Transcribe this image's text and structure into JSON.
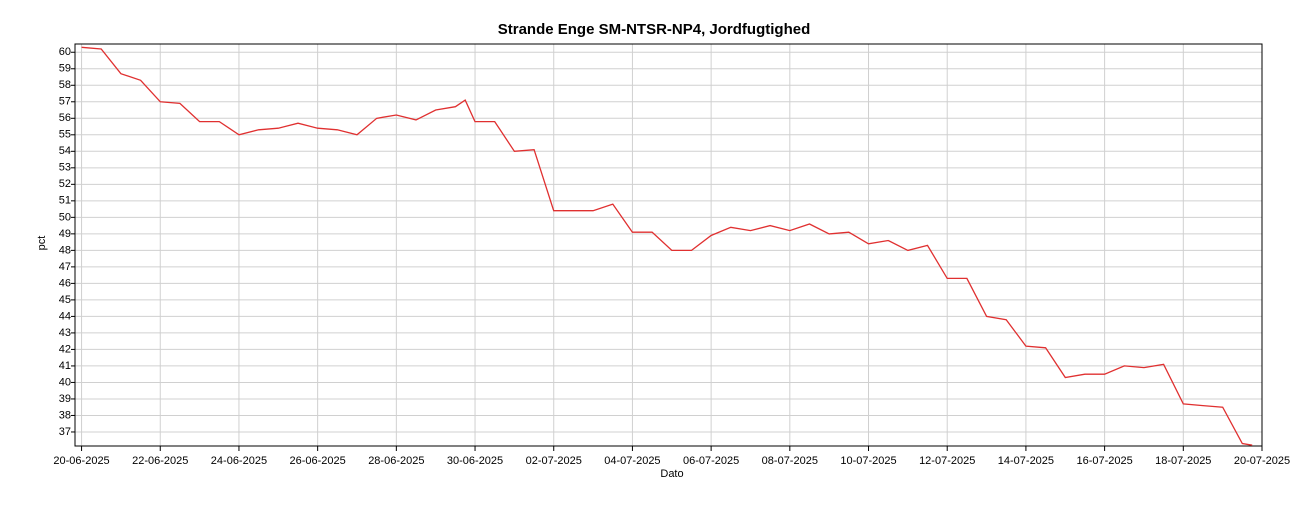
{
  "chart_data": {
    "type": "line",
    "title": "Strande Enge SM-NTSR-NP4, Jordfugtighed",
    "xlabel": "Dato",
    "ylabel": "pct",
    "xlim": [
      "2025-06-19T20:00",
      "2025-07-20"
    ],
    "xticks": [
      {
        "value": "2025-06-20",
        "label": "20-06-2025"
      },
      {
        "value": "2025-06-22",
        "label": "22-06-2025"
      },
      {
        "value": "2025-06-24",
        "label": "24-06-2025"
      },
      {
        "value": "2025-06-26",
        "label": "26-06-2025"
      },
      {
        "value": "2025-06-28",
        "label": "28-06-2025"
      },
      {
        "value": "2025-06-30",
        "label": "30-06-2025"
      },
      {
        "value": "2025-07-02",
        "label": "02-07-2025"
      },
      {
        "value": "2025-07-04",
        "label": "04-07-2025"
      },
      {
        "value": "2025-07-06",
        "label": "06-07-2025"
      },
      {
        "value": "2025-07-08",
        "label": "08-07-2025"
      },
      {
        "value": "2025-07-10",
        "label": "10-07-2025"
      },
      {
        "value": "2025-07-12",
        "label": "12-07-2025"
      },
      {
        "value": "2025-07-14",
        "label": "14-07-2025"
      },
      {
        "value": "2025-07-16",
        "label": "16-07-2025"
      },
      {
        "value": "2025-07-18",
        "label": "18-07-2025"
      },
      {
        "value": "2025-07-20",
        "label": "20-07-2025"
      }
    ],
    "ylim": [
      36.15,
      60.5
    ],
    "yticks": [
      37,
      38,
      39,
      40,
      41,
      42,
      43,
      44,
      45,
      46,
      47,
      48,
      49,
      50,
      51,
      52,
      53,
      54,
      55,
      56,
      57,
      58,
      59,
      60
    ],
    "grid": true,
    "series": [
      {
        "name": "Jordfugtighed",
        "color": "#e03030",
        "x": [
          "2025-06-20T00:00",
          "2025-06-20T12:00",
          "2025-06-21T00:00",
          "2025-06-21T12:00",
          "2025-06-22T00:00",
          "2025-06-22T12:00",
          "2025-06-23T00:00",
          "2025-06-23T12:00",
          "2025-06-24T00:00",
          "2025-06-24T12:00",
          "2025-06-25T00:00",
          "2025-06-25T12:00",
          "2025-06-26T00:00",
          "2025-06-26T12:00",
          "2025-06-27T00:00",
          "2025-06-27T12:00",
          "2025-06-28T00:00",
          "2025-06-28T12:00",
          "2025-06-29T00:00",
          "2025-06-29T12:00",
          "2025-06-29T18:00",
          "2025-06-30T00:00",
          "2025-06-30T12:00",
          "2025-07-01T00:00",
          "2025-07-01T12:00",
          "2025-07-02T00:00",
          "2025-07-02T12:00",
          "2025-07-03T00:00",
          "2025-07-03T12:00",
          "2025-07-04T00:00",
          "2025-07-04T12:00",
          "2025-07-05T00:00",
          "2025-07-05T12:00",
          "2025-07-06T00:00",
          "2025-07-06T12:00",
          "2025-07-07T00:00",
          "2025-07-07T12:00",
          "2025-07-08T00:00",
          "2025-07-08T12:00",
          "2025-07-09T00:00",
          "2025-07-09T12:00",
          "2025-07-10T00:00",
          "2025-07-10T12:00",
          "2025-07-11T00:00",
          "2025-07-11T12:00",
          "2025-07-12T00:00",
          "2025-07-12T12:00",
          "2025-07-13T00:00",
          "2025-07-13T12:00",
          "2025-07-14T00:00",
          "2025-07-14T12:00",
          "2025-07-15T00:00",
          "2025-07-15T12:00",
          "2025-07-16T00:00",
          "2025-07-16T12:00",
          "2025-07-17T00:00",
          "2025-07-17T12:00",
          "2025-07-18T00:00",
          "2025-07-18T12:00",
          "2025-07-19T00:00",
          "2025-07-19T12:00",
          "2025-07-19T18:00"
        ],
        "values": [
          60.3,
          60.2,
          58.7,
          58.3,
          57.0,
          56.9,
          55.8,
          55.8,
          55.0,
          55.3,
          55.4,
          55.7,
          55.4,
          55.3,
          55.0,
          56.0,
          56.2,
          55.9,
          56.5,
          56.7,
          57.1,
          55.8,
          55.8,
          54.0,
          54.1,
          50.4,
          50.4,
          50.4,
          50.8,
          49.1,
          49.1,
          48.0,
          48.0,
          48.9,
          49.4,
          49.2,
          49.5,
          49.2,
          49.6,
          49.0,
          49.1,
          48.4,
          48.6,
          48.0,
          48.3,
          46.3,
          46.3,
          44.0,
          43.8,
          42.2,
          42.1,
          40.3,
          40.5,
          40.5,
          41.0,
          40.9,
          41.1,
          38.7,
          38.6,
          38.5,
          36.3,
          36.2
        ]
      }
    ]
  }
}
